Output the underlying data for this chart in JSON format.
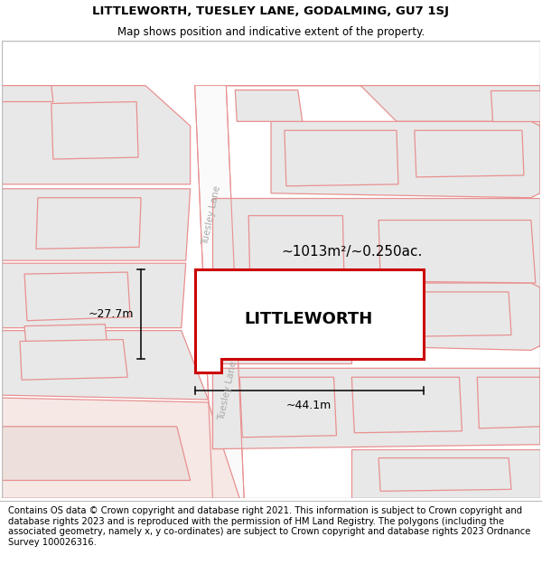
{
  "title_line1": "LITTLEWORTH, TUESLEY LANE, GODALMING, GU7 1SJ",
  "title_line2": "Map shows position and indicative extent of the property.",
  "footer_text": "Contains OS data © Crown copyright and database right 2021. This information is subject to Crown copyright and database rights 2023 and is reproduced with the permission of HM Land Registry. The polygons (including the associated geometry, namely x, y co-ordinates) are subject to Crown copyright and database rights 2023 Ordnance Survey 100026316.",
  "property_label": "LITTLEWORTH",
  "area_label": "~1013m²/~0.250ac.",
  "dim_width": "~44.1m",
  "dim_height": "~27.7m",
  "road_label": "Tuesley Lane",
  "bg_color": "#ffffff",
  "plot_color": "#cc0000",
  "surround_fill": "#e8e8e8",
  "surround_edge": "#e89090",
  "road_edge": "#e89090",
  "road_fill": "#ffffff",
  "dim_line_color": "#111111",
  "road_text_color": "#aaaaaa",
  "title_fontsize": 9.5,
  "subtitle_fontsize": 8.5,
  "footer_fontsize": 7.2,
  "property_fontsize": 13,
  "area_fontsize": 11,
  "dim_fontsize": 9
}
